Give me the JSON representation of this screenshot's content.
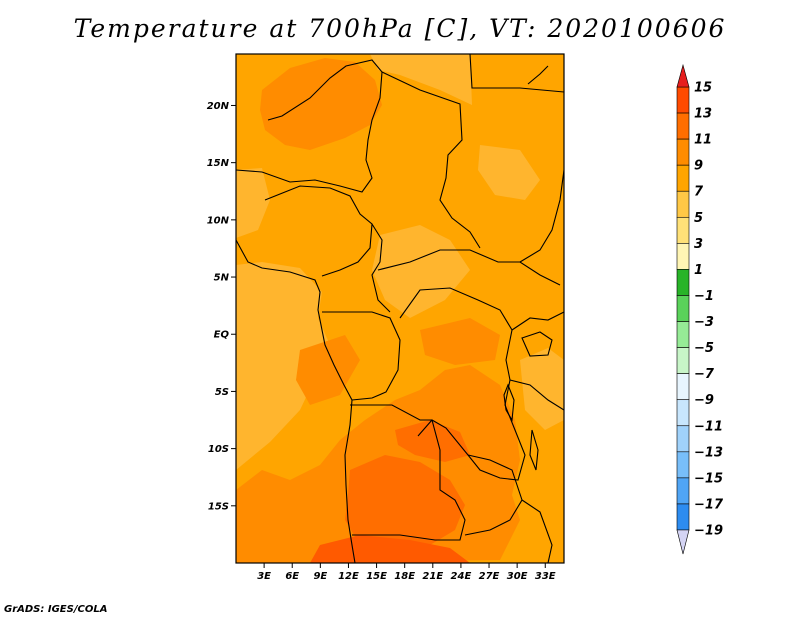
{
  "title": "Temperature at 700hPa [C], VT: 2020100606",
  "credit": "GrADS: IGES/COLA",
  "map": {
    "lat_ticks": [
      {
        "label": "20N",
        "lat": 20
      },
      {
        "label": "15N",
        "lat": 15
      },
      {
        "label": "10N",
        "lat": 10
      },
      {
        "label": "5N",
        "lat": 5
      },
      {
        "label": "EQ",
        "lat": 0
      },
      {
        "label": "5S",
        "lat": -5
      },
      {
        "label": "10S",
        "lat": -10
      },
      {
        "label": "15S",
        "lat": -15
      }
    ],
    "lon_ticks": [
      {
        "label": "3E",
        "lon": 3
      },
      {
        "label": "6E",
        "lon": 6
      },
      {
        "label": "9E",
        "lon": 9
      },
      {
        "label": "12E",
        "lon": 12
      },
      {
        "label": "15E",
        "lon": 15
      },
      {
        "label": "18E",
        "lon": 18
      },
      {
        "label": "21E",
        "lon": 21
      },
      {
        "label": "24E",
        "lon": 24
      },
      {
        "label": "27E",
        "lon": 27
      },
      {
        "label": "30E",
        "lon": 30
      },
      {
        "label": "33E",
        "lon": 33
      }
    ],
    "lon_range": [
      0,
      35
    ],
    "lat_range": [
      -20,
      24.5
    ]
  },
  "colorbar": {
    "colors": [
      "#0a0a6e",
      "#0a30a8",
      "#1450c8",
      "#1e6edc",
      "#2d8cf0",
      "#50a5f5",
      "#78bef9",
      "#a0d2fb",
      "#c8e6fd",
      "#e8f5fe",
      "#c8f5c8",
      "#96eb96",
      "#5ad25a",
      "#28b428",
      "#fff5b4",
      "#ffe178",
      "#ffc846",
      "#ffa500",
      "#ff8c00",
      "#ff6e00",
      "#ff4b00",
      "#e61e1e"
    ],
    "labels": [
      "15",
      "13",
      "11",
      "9",
      "7",
      "5",
      "3",
      "1",
      "−1",
      "−3",
      "−5",
      "−7",
      "−9",
      "−11",
      "−13",
      "−15",
      "−17",
      "−19"
    ],
    "low_end_color": "#d4d4f4",
    "high_end_color": "#e61e1e"
  }
}
